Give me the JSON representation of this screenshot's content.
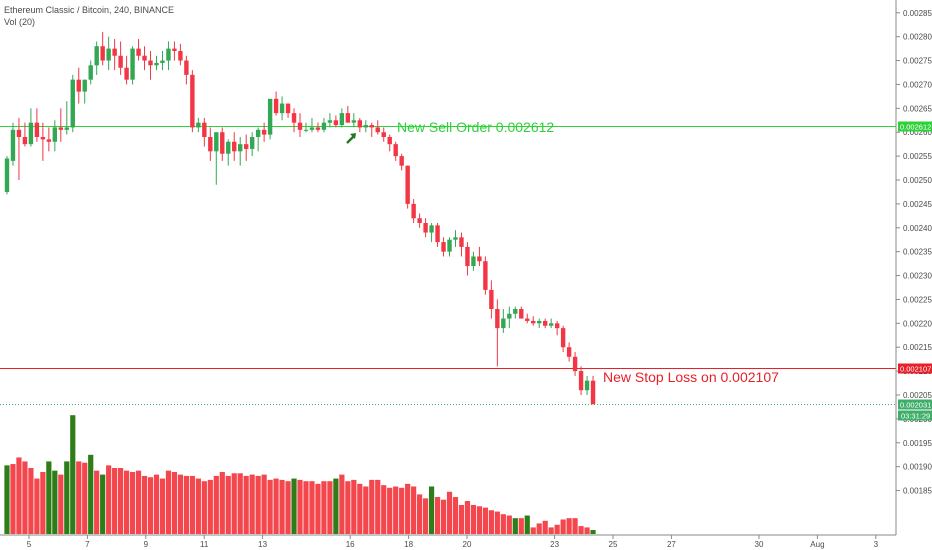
{
  "header": {
    "title": "Ethereum Classic / Bitcoin, 240, BINANCE",
    "subtitle": "Vol (20)"
  },
  "colors": {
    "up": "#33a853",
    "down": "#f23645",
    "vol_up": "#2e7d19",
    "vol_down": "#f3474d",
    "sell_line": "#2fd13a",
    "stop_line": "#e8202a",
    "price_line": "#3fae6a",
    "axis_text": "#4a4a4a",
    "arrow": "#1f7a1f"
  },
  "annotations": {
    "sell_text": "New Sell Order 0.002612",
    "stop_text": "New Stop Loss on 0.002107"
  },
  "chart_data": {
    "type": "candlestick",
    "title": "Ethereum Classic / Bitcoin, 240, BINANCE",
    "y_axis": {
      "position": "right",
      "ylim": [
        0.00178,
        0.00286
      ],
      "ticks": [
        "0.002850",
        "0.002800",
        "0.002750",
        "0.002700",
        "0.002650",
        "0.002600",
        "0.002550",
        "0.002500",
        "0.002450",
        "0.002400",
        "0.002350",
        "0.002300",
        "0.002250",
        "0.002200",
        "0.002150",
        "0.002100",
        "0.002050",
        "0.002000",
        "0.001950",
        "0.001900",
        "0.001850"
      ],
      "tick_values": [
        0.00285,
        0.0028,
        0.00275,
        0.0027,
        0.00265,
        0.0026,
        0.00255,
        0.0025,
        0.00245,
        0.0024,
        0.00235,
        0.0023,
        0.00225,
        0.0022,
        0.00215,
        0.0021,
        0.00205,
        0.002,
        0.00195,
        0.0019,
        0.00185
      ]
    },
    "x_axis": {
      "labels": [
        "5",
        "7",
        "9",
        "11",
        "13",
        "16",
        "18",
        "20",
        "23",
        "25",
        "27",
        "30",
        "Aug",
        "3"
      ],
      "label_positions_days": [
        5,
        7,
        9,
        11,
        13,
        16,
        18,
        20,
        23,
        25,
        27,
        30,
        32,
        34
      ]
    },
    "horizontal_lines": [
      {
        "label": "0.002612",
        "value": 0.002612,
        "role": "sell"
      },
      {
        "label": "0.002107",
        "value": 0.002107,
        "role": "stop"
      },
      {
        "label": "0.002031",
        "value": 0.002031,
        "role": "last",
        "countdown": "03:31:29"
      }
    ],
    "candles": [
      [
        0.002475,
        0.00255,
        0.00247,
        0.002545
      ],
      [
        0.00254,
        0.00262,
        0.00253,
        0.002605
      ],
      [
        0.002605,
        0.00263,
        0.0025,
        0.00259
      ],
      [
        0.00259,
        0.00262,
        0.00257,
        0.002575
      ],
      [
        0.002575,
        0.00265,
        0.00257,
        0.00262
      ],
      [
        0.00262,
        0.00265,
        0.00258,
        0.00259
      ],
      [
        0.00259,
        0.00262,
        0.00254,
        0.002585
      ],
      [
        0.002585,
        0.00261,
        0.00256,
        0.00258
      ],
      [
        0.00258,
        0.002625,
        0.00256,
        0.00261
      ],
      [
        0.00261,
        0.00265,
        0.00258,
        0.002605
      ],
      [
        0.002605,
        0.002665,
        0.002595,
        0.00261
      ],
      [
        0.00261,
        0.00272,
        0.0026,
        0.00271
      ],
      [
        0.00271,
        0.002735,
        0.00266,
        0.002685
      ],
      [
        0.002685,
        0.00271,
        0.00266,
        0.00271
      ],
      [
        0.00271,
        0.00275,
        0.0027,
        0.00274
      ],
      [
        0.00274,
        0.00279,
        0.00272,
        0.00278
      ],
      [
        0.00278,
        0.00281,
        0.00274,
        0.00275
      ],
      [
        0.00275,
        0.0028,
        0.00273,
        0.002775
      ],
      [
        0.002775,
        0.002795,
        0.00273,
        0.00276
      ],
      [
        0.00276,
        0.00279,
        0.00272,
        0.002735
      ],
      [
        0.002735,
        0.00276,
        0.0027,
        0.00271
      ],
      [
        0.00271,
        0.00278,
        0.0027,
        0.002775
      ],
      [
        0.002775,
        0.002795,
        0.00275,
        0.00276
      ],
      [
        0.00276,
        0.00278,
        0.00273,
        0.00275
      ],
      [
        0.00275,
        0.00277,
        0.00271,
        0.00274
      ],
      [
        0.00274,
        0.00276,
        0.00273,
        0.002745
      ],
      [
        0.002745,
        0.00277,
        0.00273,
        0.00275
      ],
      [
        0.00275,
        0.00279,
        0.00273,
        0.002775
      ],
      [
        0.002775,
        0.00279,
        0.00275,
        0.00277
      ],
      [
        0.00277,
        0.002785,
        0.00274,
        0.00275
      ],
      [
        0.00275,
        0.00276,
        0.0027,
        0.00272
      ],
      [
        0.00272,
        0.00273,
        0.0026,
        0.00261
      ],
      [
        0.00261,
        0.00263,
        0.0026,
        0.00262
      ],
      [
        0.00262,
        0.00263,
        0.00257,
        0.00259
      ],
      [
        0.00259,
        0.00261,
        0.00254,
        0.00256
      ],
      [
        0.00256,
        0.0026,
        0.00249,
        0.0026
      ],
      [
        0.0026,
        0.00261,
        0.00254,
        0.002555
      ],
      [
        0.002555,
        0.002585,
        0.00253,
        0.00258
      ],
      [
        0.00258,
        0.0026,
        0.00254,
        0.00256
      ],
      [
        0.00256,
        0.00259,
        0.00253,
        0.002575
      ],
      [
        0.002575,
        0.002595,
        0.00254,
        0.002565
      ],
      [
        0.002565,
        0.0026,
        0.00255,
        0.00259
      ],
      [
        0.00259,
        0.00261,
        0.00256,
        0.002605
      ],
      [
        0.002605,
        0.00262,
        0.00258,
        0.002595
      ],
      [
        0.002595,
        0.00266,
        0.002585,
        0.00267
      ],
      [
        0.00267,
        0.002685,
        0.002635,
        0.00264
      ],
      [
        0.00264,
        0.002675,
        0.002625,
        0.00266
      ],
      [
        0.00266,
        0.00266,
        0.00263,
        0.00264
      ],
      [
        0.00264,
        0.00265,
        0.0026,
        0.00262
      ],
      [
        0.00262,
        0.00264,
        0.00259,
        0.002605
      ],
      [
        0.002605,
        0.00262,
        0.0026,
        0.002605
      ],
      [
        0.002605,
        0.00263,
        0.0026,
        0.00261
      ],
      [
        0.00261,
        0.00262,
        0.0026,
        0.002605
      ],
      [
        0.002605,
        0.00263,
        0.0026,
        0.00262
      ],
      [
        0.00262,
        0.00264,
        0.00261,
        0.002625
      ],
      [
        0.002625,
        0.002635,
        0.00261,
        0.002615
      ],
      [
        0.002615,
        0.00265,
        0.00261,
        0.00264
      ],
      [
        0.00264,
        0.002655,
        0.00262,
        0.00262
      ],
      [
        0.00262,
        0.00264,
        0.00261,
        0.002625
      ],
      [
        0.002625,
        0.00263,
        0.0026,
        0.00261
      ],
      [
        0.00261,
        0.002625,
        0.0026,
        0.002615
      ],
      [
        0.002615,
        0.00262,
        0.00259,
        0.00261
      ],
      [
        0.00261,
        0.002625,
        0.002595,
        0.0026
      ],
      [
        0.0026,
        0.00261,
        0.00258,
        0.00259
      ],
      [
        0.00259,
        0.002595,
        0.00256,
        0.002575
      ],
      [
        0.002575,
        0.00258,
        0.00254,
        0.00255
      ],
      [
        0.00255,
        0.002555,
        0.00252,
        0.00253
      ],
      [
        0.00253,
        0.00253,
        0.00244,
        0.00245
      ],
      [
        0.00245,
        0.00246,
        0.00241,
        0.00242
      ],
      [
        0.00242,
        0.00243,
        0.0024,
        0.00241
      ],
      [
        0.00241,
        0.00242,
        0.00238,
        0.00239
      ],
      [
        0.00239,
        0.00241,
        0.00237,
        0.002405
      ],
      [
        0.002405,
        0.00241,
        0.00236,
        0.00237
      ],
      [
        0.00237,
        0.00238,
        0.00234,
        0.00235
      ],
      [
        0.00235,
        0.00238,
        0.00234,
        0.002375
      ],
      [
        0.002375,
        0.002395,
        0.00236,
        0.00238
      ],
      [
        0.00238,
        0.00239,
        0.00234,
        0.00236
      ],
      [
        0.00236,
        0.00237,
        0.0023,
        0.00232
      ],
      [
        0.00232,
        0.00235,
        0.00231,
        0.00234
      ],
      [
        0.00234,
        0.00236,
        0.00232,
        0.00233
      ],
      [
        0.00233,
        0.00234,
        0.00226,
        0.00227
      ],
      [
        0.00227,
        0.00229,
        0.00221,
        0.00223
      ],
      [
        0.00223,
        0.00225,
        0.00211,
        0.00219
      ],
      [
        0.00219,
        0.00223,
        0.00218,
        0.00221
      ],
      [
        0.00221,
        0.002235,
        0.00219,
        0.00222
      ],
      [
        0.00222,
        0.002235,
        0.00221,
        0.00223
      ],
      [
        0.00223,
        0.002235,
        0.00221,
        0.00221
      ],
      [
        0.00221,
        0.00222,
        0.0022,
        0.002205
      ],
      [
        0.002205,
        0.002215,
        0.002195,
        0.0022
      ],
      [
        0.0022,
        0.00221,
        0.00219,
        0.002205
      ],
      [
        0.002205,
        0.00221,
        0.00219,
        0.002195
      ],
      [
        0.002195,
        0.00221,
        0.00219,
        0.0022
      ],
      [
        0.0022,
        0.002205,
        0.002175,
        0.00219
      ],
      [
        0.00219,
        0.002195,
        0.00214,
        0.00215
      ],
      [
        0.00215,
        0.00216,
        0.00212,
        0.00213
      ],
      [
        0.00213,
        0.00214,
        0.00209,
        0.0021
      ],
      [
        0.0021,
        0.00211,
        0.00205,
        0.00206
      ],
      [
        0.00206,
        0.00209,
        0.00205,
        0.00208
      ],
      [
        0.00208,
        0.00209,
        0.00203,
        0.002031
      ]
    ],
    "volume_axis": {
      "ylim": [
        0,
        100
      ]
    },
    "volume": [
      [
        52,
        0
      ],
      [
        53,
        1
      ],
      [
        58,
        1
      ],
      [
        55,
        1
      ],
      [
        50,
        1
      ],
      [
        42,
        1
      ],
      [
        47,
        1
      ],
      [
        55,
        0
      ],
      [
        48,
        0
      ],
      [
        45,
        1
      ],
      [
        55,
        0
      ],
      [
        90,
        0
      ],
      [
        55,
        1
      ],
      [
        54,
        1
      ],
      [
        60,
        0
      ],
      [
        48,
        1
      ],
      [
        45,
        0
      ],
      [
        52,
        1
      ],
      [
        50,
        1
      ],
      [
        50,
        1
      ],
      [
        48,
        1
      ],
      [
        47,
        1
      ],
      [
        48,
        1
      ],
      [
        44,
        1
      ],
      [
        43,
        1
      ],
      [
        45,
        1
      ],
      [
        42,
        1
      ],
      [
        48,
        1
      ],
      [
        47,
        1
      ],
      [
        45,
        1
      ],
      [
        44,
        1
      ],
      [
        44,
        1
      ],
      [
        42,
        1
      ],
      [
        40,
        1
      ],
      [
        41,
        1
      ],
      [
        44,
        1
      ],
      [
        47,
        1
      ],
      [
        44,
        1
      ],
      [
        46,
        1
      ],
      [
        46,
        1
      ],
      [
        44,
        1
      ],
      [
        45,
        1
      ],
      [
        44,
        1
      ],
      [
        45,
        1
      ],
      [
        41,
        1
      ],
      [
        42,
        1
      ],
      [
        41,
        1
      ],
      [
        40,
        1
      ],
      [
        42,
        0
      ],
      [
        41,
        1
      ],
      [
        40,
        1
      ],
      [
        40,
        1
      ],
      [
        38,
        1
      ],
      [
        40,
        1
      ],
      [
        40,
        1
      ],
      [
        42,
        0
      ],
      [
        45,
        1
      ],
      [
        40,
        1
      ],
      [
        41,
        1
      ],
      [
        38,
        1
      ],
      [
        36,
        1
      ],
      [
        41,
        1
      ],
      [
        41,
        1
      ],
      [
        37,
        1
      ],
      [
        35,
        1
      ],
      [
        36,
        1
      ],
      [
        35,
        1
      ],
      [
        38,
        1
      ],
      [
        36,
        1
      ],
      [
        30,
        1
      ],
      [
        27,
        1
      ],
      [
        36,
        0
      ],
      [
        28,
        1
      ],
      [
        26,
        1
      ],
      [
        32,
        1
      ],
      [
        28,
        1
      ],
      [
        22,
        1
      ],
      [
        25,
        1
      ],
      [
        22,
        1
      ],
      [
        21,
        1
      ],
      [
        20,
        1
      ],
      [
        18,
        1
      ],
      [
        17,
        1
      ],
      [
        15,
        1
      ],
      [
        14,
        1
      ],
      [
        12,
        0
      ],
      [
        12,
        1
      ],
      [
        14,
        0
      ],
      [
        5,
        1
      ],
      [
        8,
        1
      ],
      [
        10,
        1
      ],
      [
        5,
        1
      ],
      [
        7,
        1
      ],
      [
        11,
        1
      ],
      [
        12,
        1
      ],
      [
        12,
        1
      ],
      [
        6,
        1
      ],
      [
        5,
        1
      ],
      [
        3,
        0
      ]
    ]
  }
}
